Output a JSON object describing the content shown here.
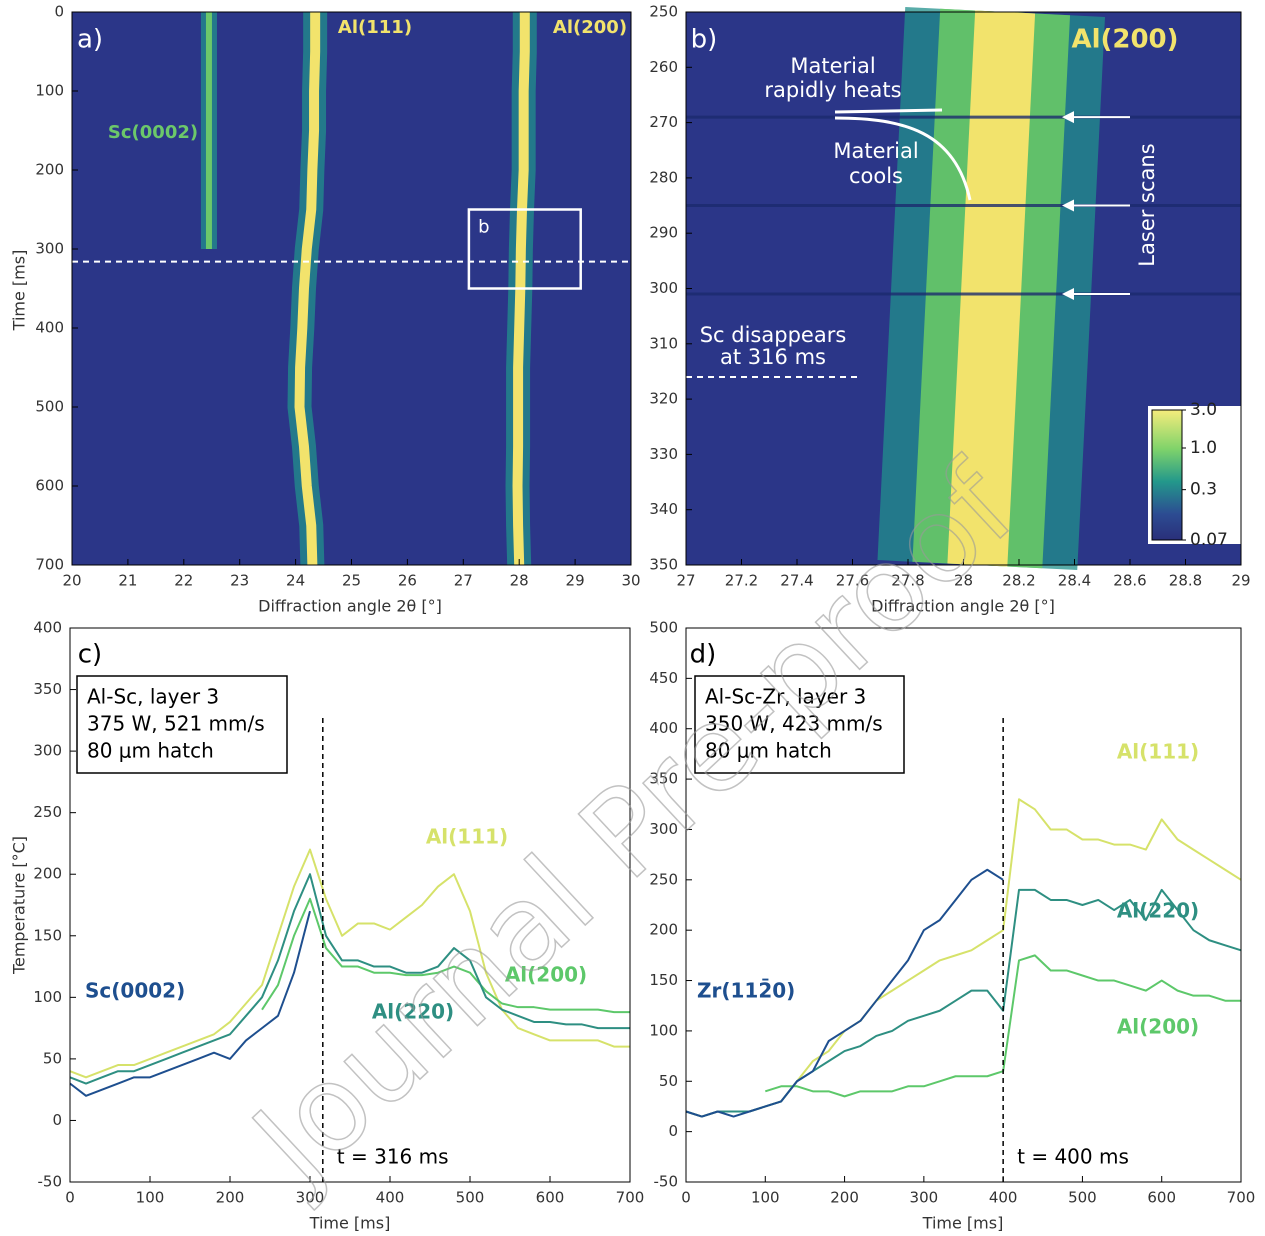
{
  "watermark": "Journal Pre-proof",
  "chart_data": [
    {
      "type": "heatmap",
      "panel_label": "a)",
      "xlabel": "Diffraction angle 2θ [°]",
      "ylabel": "Time [ms]",
      "xlim": [
        20,
        30
      ],
      "ylim": [
        0,
        700
      ],
      "y_reversed": true,
      "xticks": [
        20,
        21,
        22,
        23,
        24,
        25,
        26,
        27,
        28,
        29,
        30
      ],
      "yticks": [
        0,
        100,
        200,
        300,
        400,
        500,
        600,
        700
      ],
      "background": "#2b3688",
      "y": [
        0,
        50,
        100,
        150,
        200,
        250,
        300,
        350,
        400,
        450,
        500,
        550,
        600,
        650,
        700
      ],
      "series": [
        {
          "name": "Sc(0002)",
          "color": "#6cc86a",
          "values": [
            22.45,
            22.45,
            22.45,
            22.45,
            22.45,
            22.45,
            22.45,
            null,
            null,
            null,
            null,
            null,
            null,
            null,
            null
          ]
        },
        {
          "name": "Al(111)",
          "color": "#f2e36c",
          "values": [
            24.35,
            24.35,
            24.33,
            24.33,
            24.3,
            24.28,
            24.2,
            24.15,
            24.12,
            24.08,
            24.07,
            24.15,
            24.2,
            24.28,
            24.3
          ]
        },
        {
          "name": "Al(200)",
          "color": "#f2e36c",
          "values": [
            28.1,
            28.1,
            28.08,
            28.08,
            28.08,
            28.05,
            28.03,
            28.02,
            28.0,
            27.98,
            27.98,
            27.98,
            27.97,
            27.98,
            28.0
          ]
        }
      ],
      "dashed_line": 316,
      "inset_box": {
        "label": "b",
        "xlim": [
          27.1,
          29.1
        ],
        "ylim": [
          250,
          350
        ]
      }
    },
    {
      "type": "heatmap",
      "panel_label": "b)",
      "xlabel": "Diffraction angle 2θ [°]",
      "xlim": [
        27,
        29
      ],
      "ylim": [
        250,
        350
      ],
      "y_reversed": true,
      "xticks": [
        27,
        27.2,
        27.4,
        27.6,
        27.8,
        28,
        28.2,
        28.4,
        28.6,
        28.8,
        29
      ],
      "yticks": [
        250,
        260,
        270,
        280,
        290,
        300,
        310,
        320,
        330,
        340,
        350
      ],
      "background": "#2b3688",
      "y": [
        250,
        260,
        270,
        280,
        290,
        300,
        310,
        320,
        330,
        340,
        350
      ],
      "series": [
        {
          "name": "Al(200)",
          "color": "#f2e36c",
          "values": [
            28.15,
            28.14,
            28.13,
            28.12,
            28.11,
            28.1,
            28.09,
            28.08,
            28.07,
            28.06,
            28.05
          ]
        }
      ],
      "laser_scans": [
        269,
        285,
        301
      ],
      "side_label": "Laser scans",
      "annotations": [
        [
          "Material",
          "rapidly heats"
        ],
        [
          "Material",
          "cools"
        ],
        [
          "Sc disappears",
          "at 316 ms"
        ]
      ],
      "dashed_line": 316,
      "colorbar": {
        "log": true,
        "lim": [
          0.07,
          3
        ],
        "ticks": [
          {
            "value": 3,
            "label": "3.0"
          },
          {
            "value": 1,
            "label": "1.0"
          },
          0.3,
          0.07
        ]
      }
    },
    {
      "type": "line",
      "panel_label": "c)",
      "xlabel": "Time [ms]",
      "ylabel": "Temperature [°C]",
      "xlim": [
        0,
        700
      ],
      "ylim": [
        -50,
        400
      ],
      "xticks": [
        0,
        100,
        200,
        300,
        400,
        500,
        600,
        700
      ],
      "yticks": [
        -50,
        0,
        50,
        100,
        150,
        200,
        250,
        300,
        350,
        400
      ],
      "info_box": [
        "Al-Sc, layer 3",
        "375 W, 521 mm/s",
        "80 μm hatch"
      ],
      "vline": 316,
      "vline_label": "t = 316 ms",
      "x": [
        0,
        20,
        40,
        60,
        80,
        100,
        120,
        140,
        160,
        180,
        200,
        220,
        240,
        260,
        280,
        300,
        320,
        340,
        360,
        380,
        400,
        420,
        440,
        460,
        480,
        500,
        520,
        540,
        560,
        580,
        600,
        620,
        640,
        660,
        680,
        700
      ],
      "series": [
        {
          "name": "Al(111)",
          "color": "#d6e26a",
          "values": [
            40,
            35,
            40,
            45,
            45,
            50,
            55,
            60,
            65,
            70,
            80,
            95,
            110,
            150,
            190,
            220,
            180,
            150,
            160,
            160,
            155,
            165,
            175,
            190,
            200,
            170,
            120,
            90,
            75,
            70,
            65,
            65,
            65,
            65,
            60,
            60
          ]
        },
        {
          "name": "Al(200)",
          "color": "#5dc86a",
          "values": [
            null,
            null,
            null,
            null,
            null,
            null,
            null,
            null,
            null,
            null,
            null,
            null,
            90,
            110,
            150,
            180,
            140,
            125,
            125,
            120,
            120,
            118,
            118,
            120,
            125,
            120,
            105,
            95,
            92,
            92,
            90,
            90,
            90,
            90,
            88,
            88
          ]
        },
        {
          "name": "Al(220)",
          "color": "#2e8f82",
          "values": [
            35,
            30,
            35,
            40,
            40,
            45,
            50,
            55,
            60,
            65,
            70,
            85,
            100,
            130,
            170,
            200,
            150,
            130,
            130,
            125,
            125,
            120,
            120,
            125,
            140,
            130,
            100,
            90,
            85,
            80,
            80,
            78,
            78,
            75,
            75,
            75
          ]
        },
        {
          "name": "Sc(0002)",
          "color": "#1e4f8f",
          "values": [
            30,
            20,
            25,
            30,
            35,
            35,
            40,
            45,
            50,
            55,
            50,
            65,
            75,
            85,
            120,
            170,
            null,
            null,
            null,
            null,
            null,
            null,
            null,
            null,
            null,
            null,
            null,
            null,
            null,
            null,
            null,
            null,
            null,
            null,
            null,
            null
          ]
        }
      ]
    },
    {
      "type": "line",
      "panel_label": "d)",
      "xlabel": "Time [ms]",
      "xlim": [
        0,
        700
      ],
      "ylim": [
        -50,
        500
      ],
      "xticks": [
        0,
        100,
        200,
        300,
        400,
        500,
        600,
        700
      ],
      "yticks": [
        -50,
        0,
        50,
        100,
        150,
        200,
        250,
        300,
        350,
        400,
        450,
        500
      ],
      "info_box": [
        "Al-Sc-Zr, layer 3",
        "350 W, 423 mm/s",
        "80 μm hatch"
      ],
      "vline": 400,
      "vline_label": "t = 400 ms",
      "x": [
        0,
        20,
        40,
        60,
        80,
        100,
        120,
        140,
        160,
        180,
        200,
        220,
        240,
        260,
        280,
        300,
        320,
        340,
        360,
        380,
        400,
        420,
        440,
        460,
        480,
        500,
        520,
        540,
        560,
        580,
        600,
        620,
        640,
        660,
        680,
        700
      ],
      "series": [
        {
          "name": "Al(111)",
          "color": "#d6e26a",
          "values": [
            20,
            15,
            20,
            20,
            20,
            25,
            30,
            50,
            70,
            80,
            100,
            110,
            130,
            140,
            150,
            160,
            170,
            175,
            180,
            190,
            200,
            330,
            320,
            300,
            300,
            290,
            290,
            285,
            285,
            280,
            310,
            290,
            280,
            270,
            260,
            250
          ]
        },
        {
          "name": "Al(220)",
          "color": "#2e8f82",
          "values": [
            20,
            15,
            20,
            20,
            20,
            25,
            30,
            50,
            60,
            70,
            80,
            85,
            95,
            100,
            110,
            115,
            120,
            130,
            140,
            140,
            120,
            240,
            240,
            230,
            230,
            225,
            230,
            220,
            230,
            210,
            240,
            220,
            200,
            190,
            185,
            180
          ]
        },
        {
          "name": "Al(200)",
          "color": "#5dc86a",
          "values": [
            null,
            null,
            null,
            null,
            null,
            40,
            45,
            45,
            40,
            40,
            35,
            40,
            40,
            40,
            45,
            45,
            50,
            55,
            55,
            55,
            60,
            170,
            175,
            160,
            160,
            155,
            150,
            150,
            145,
            140,
            150,
            140,
            135,
            135,
            130,
            130
          ]
        },
        {
          "name": "Zr(112̄0)",
          "color": "#1e4f8f",
          "values": [
            20,
            15,
            20,
            15,
            20,
            25,
            30,
            50,
            60,
            90,
            100,
            110,
            130,
            150,
            170,
            200,
            210,
            230,
            250,
            260,
            250,
            null,
            null,
            null,
            null,
            null,
            null,
            null,
            null,
            null,
            null,
            null,
            null,
            null,
            null,
            null
          ]
        }
      ]
    }
  ]
}
